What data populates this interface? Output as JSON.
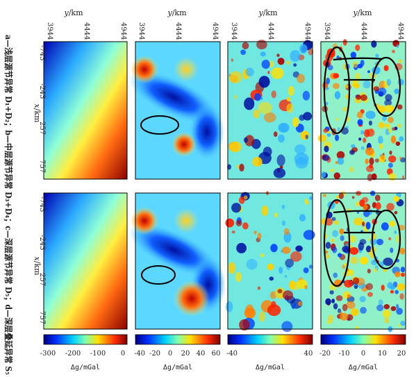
{
  "axes": {
    "top_label_y": "y",
    "top_label_unit": "/km",
    "side_label_x": "x",
    "side_label_unit": "/km",
    "top_ticks": [
      "3944",
      "4444",
      "4944"
    ],
    "side_ticks": [
      "-743",
      "-243",
      "257",
      "757"
    ]
  },
  "caption": "a—浅层源节异常 D₁+D₂；b—中层源节异常 D₃+D₄；c—深层源节异常 D₅；d—深层叠延异常 S₅",
  "colorbars": [
    {
      "ticks": [
        "-300",
        "-200",
        "-100",
        "0"
      ],
      "label": "Δg/mGal"
    },
    {
      "ticks": [
        "-40",
        "-20",
        "0",
        "20",
        "40",
        "60"
      ],
      "label": "Δg/mGal"
    },
    {
      "ticks": [
        "-40",
        "",
        "40"
      ],
      "label": "Δg/mGal"
    },
    {
      "ticks": [
        "-20",
        "-10",
        "0",
        "10",
        "20"
      ],
      "label": "Δg/mGal"
    }
  ],
  "colors": {
    "low": "#0000c8",
    "mid": "#7fffd0",
    "high": "#8b0000",
    "ellipse": "#000000"
  }
}
